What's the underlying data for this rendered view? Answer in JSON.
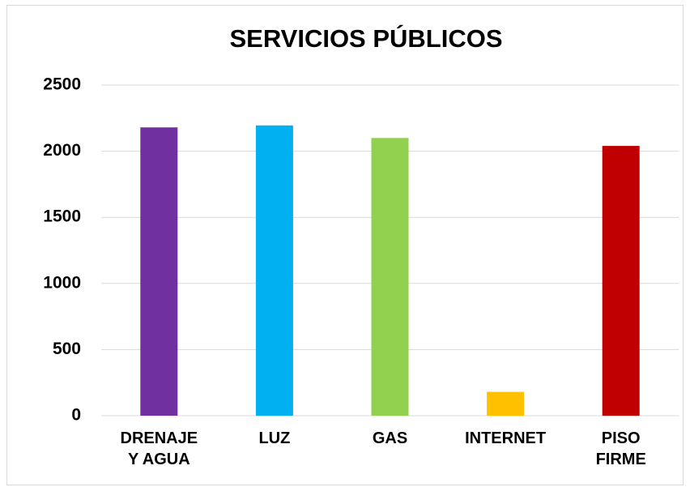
{
  "chart_data": {
    "type": "bar",
    "title": "SERVICIOS PÚBLICOS",
    "categories": [
      "DRENAJE Y AGUA",
      "LUZ",
      "GAS",
      "INTERNET",
      "PISO FIRME"
    ],
    "values": [
      2180,
      2195,
      2100,
      180,
      2040
    ],
    "colors": [
      "#7030a0",
      "#00b0f0",
      "#92d050",
      "#ffc000",
      "#c00000"
    ],
    "ylim": [
      0,
      2500
    ],
    "yticks": [
      0,
      500,
      1000,
      1500,
      2000,
      2500
    ],
    "grid": true
  }
}
